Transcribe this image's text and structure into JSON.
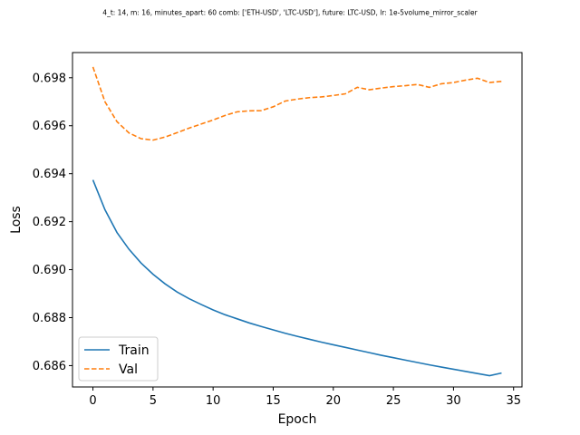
{
  "chart_data": {
    "type": "line",
    "title": "4_t: 14, m: 16, minutes_apart: 60 comb: ['ETH-USD', 'LTC-USD'], future: LTC-USD, lr: 1e-5volume_mirror_scaler",
    "xlabel": "Epoch",
    "ylabel": "Loss",
    "xlim": [
      -1.7,
      35.7
    ],
    "ylim": [
      0.68511,
      0.69905
    ],
    "xticks": [
      0,
      5,
      10,
      15,
      20,
      25,
      30,
      35
    ],
    "yticks": [
      0.686,
      0.688,
      0.69,
      0.692,
      0.694,
      0.696,
      0.698
    ],
    "ytick_labels": [
      "0.686",
      "0.688",
      "0.690",
      "0.692",
      "0.694",
      "0.696",
      "0.698"
    ],
    "xtick_labels": [
      "0",
      "5",
      "10",
      "15",
      "20",
      "25",
      "30",
      "35"
    ],
    "grid": false,
    "legend": "lower-left",
    "x": [
      0,
      1,
      2,
      3,
      4,
      5,
      6,
      7,
      8,
      9,
      10,
      11,
      12,
      13,
      14,
      15,
      16,
      17,
      18,
      19,
      20,
      21,
      22,
      23,
      24,
      25,
      26,
      27,
      28,
      29,
      30,
      31,
      32,
      33,
      34
    ],
    "series": [
      {
        "name": "Train",
        "color": "#1f77b4",
        "style": "solid",
        "values": [
          0.69374,
          0.6925,
          0.69155,
          0.69085,
          0.69028,
          0.68981,
          0.68941,
          0.68907,
          0.68879,
          0.68855,
          0.68832,
          0.68812,
          0.68795,
          0.68778,
          0.68763,
          0.68749,
          0.68735,
          0.68722,
          0.6871,
          0.68698,
          0.68687,
          0.68676,
          0.68665,
          0.68654,
          0.68643,
          0.68633,
          0.68623,
          0.68613,
          0.68603,
          0.68594,
          0.68585,
          0.68576,
          0.68567,
          0.68558,
          0.68569
        ]
      },
      {
        "name": "Val",
        "color": "#ff7f0e",
        "style": "dashed",
        "values": [
          0.69845,
          0.697,
          0.69617,
          0.6957,
          0.69546,
          0.6954,
          0.69553,
          0.69571,
          0.6959,
          0.69607,
          0.69624,
          0.69643,
          0.69658,
          0.69662,
          0.69663,
          0.69679,
          0.69703,
          0.69711,
          0.69717,
          0.6972,
          0.69726,
          0.69733,
          0.6976,
          0.6975,
          0.69757,
          0.69763,
          0.69767,
          0.69772,
          0.6976,
          0.69775,
          0.6978,
          0.6979,
          0.69798,
          0.6978,
          0.69785
        ]
      }
    ]
  }
}
